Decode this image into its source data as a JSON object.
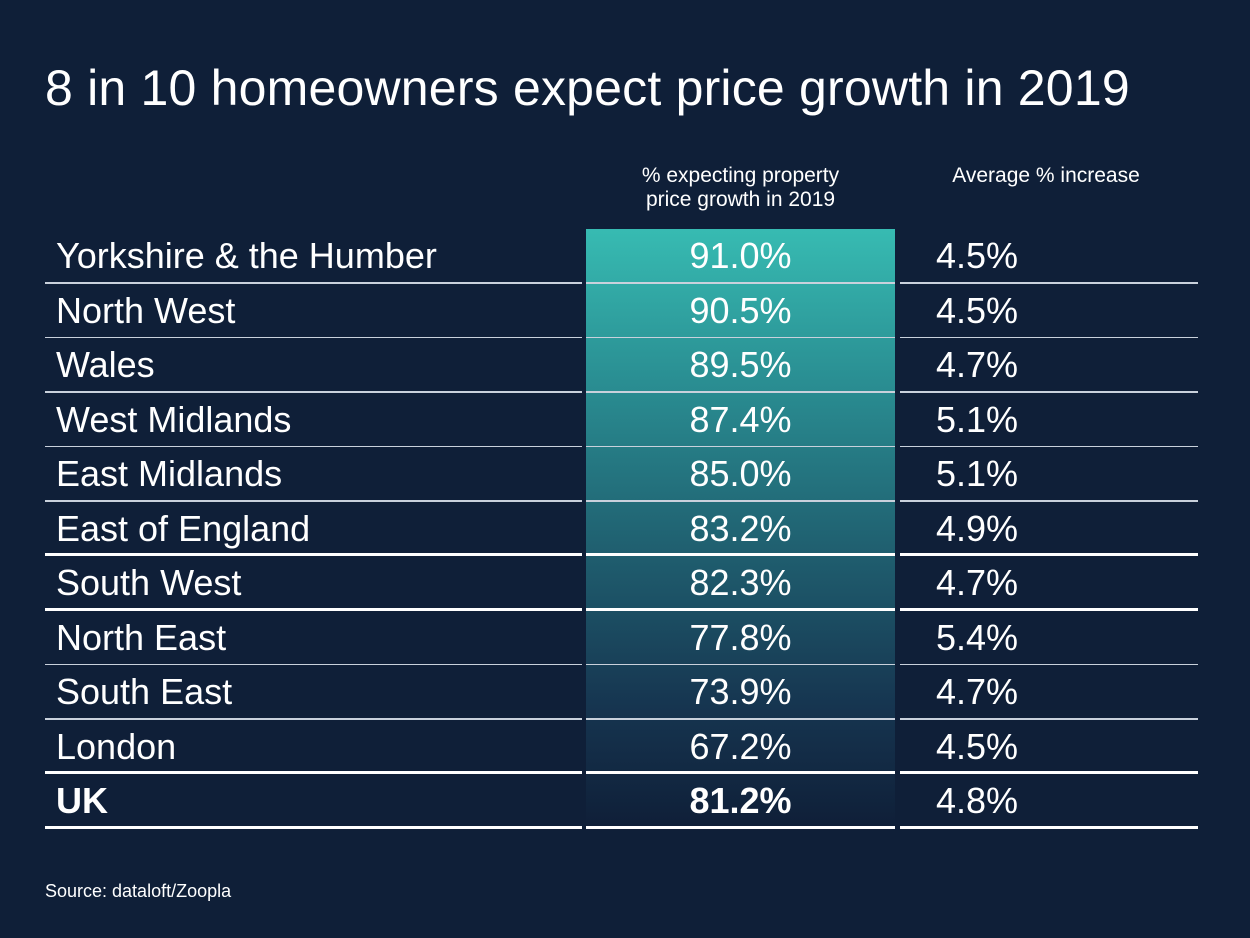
{
  "title": "8 in 10 homeowners expect price growth in 2019",
  "headers": {
    "pct_line1": "% expecting property",
    "pct_line2": "price growth in 2019",
    "avg": "Average % increase"
  },
  "chart_data": {
    "type": "table",
    "title": "8 in 10 homeowners expect price growth in 2019",
    "columns": [
      "",
      "% expecting property price growth in 2019",
      "Average % increase"
    ],
    "rows": [
      {
        "region": "Yorkshire & the Humber",
        "pct": "91.0%",
        "avg": "4.5%"
      },
      {
        "region": "North West",
        "pct": "90.5%",
        "avg": "4.5%"
      },
      {
        "region": "Wales",
        "pct": "89.5%",
        "avg": "4.7%"
      },
      {
        "region": "West Midlands",
        "pct": "87.4%",
        "avg": "5.1%"
      },
      {
        "region": "East Midlands",
        "pct": "85.0%",
        "avg": "5.1%"
      },
      {
        "region": "East of England",
        "pct": "83.2%",
        "avg": "4.9%"
      },
      {
        "region": "South West",
        "pct": "82.3%",
        "avg": "4.7%"
      },
      {
        "region": "North East",
        "pct": "77.8%",
        "avg": "5.4%"
      },
      {
        "region": "South East",
        "pct": "73.9%",
        "avg": "4.7%"
      },
      {
        "region": "London",
        "pct": "67.2%",
        "avg": "4.5%"
      },
      {
        "region": "UK",
        "pct": "81.2%",
        "avg": "4.8%"
      }
    ]
  },
  "source": "Source: dataloft/Zoopla",
  "colors": {
    "background": "#0f1f38",
    "highlight_top": "#37bbb2",
    "highlight_bottom": "#0f1f38",
    "text": "#ffffff"
  }
}
